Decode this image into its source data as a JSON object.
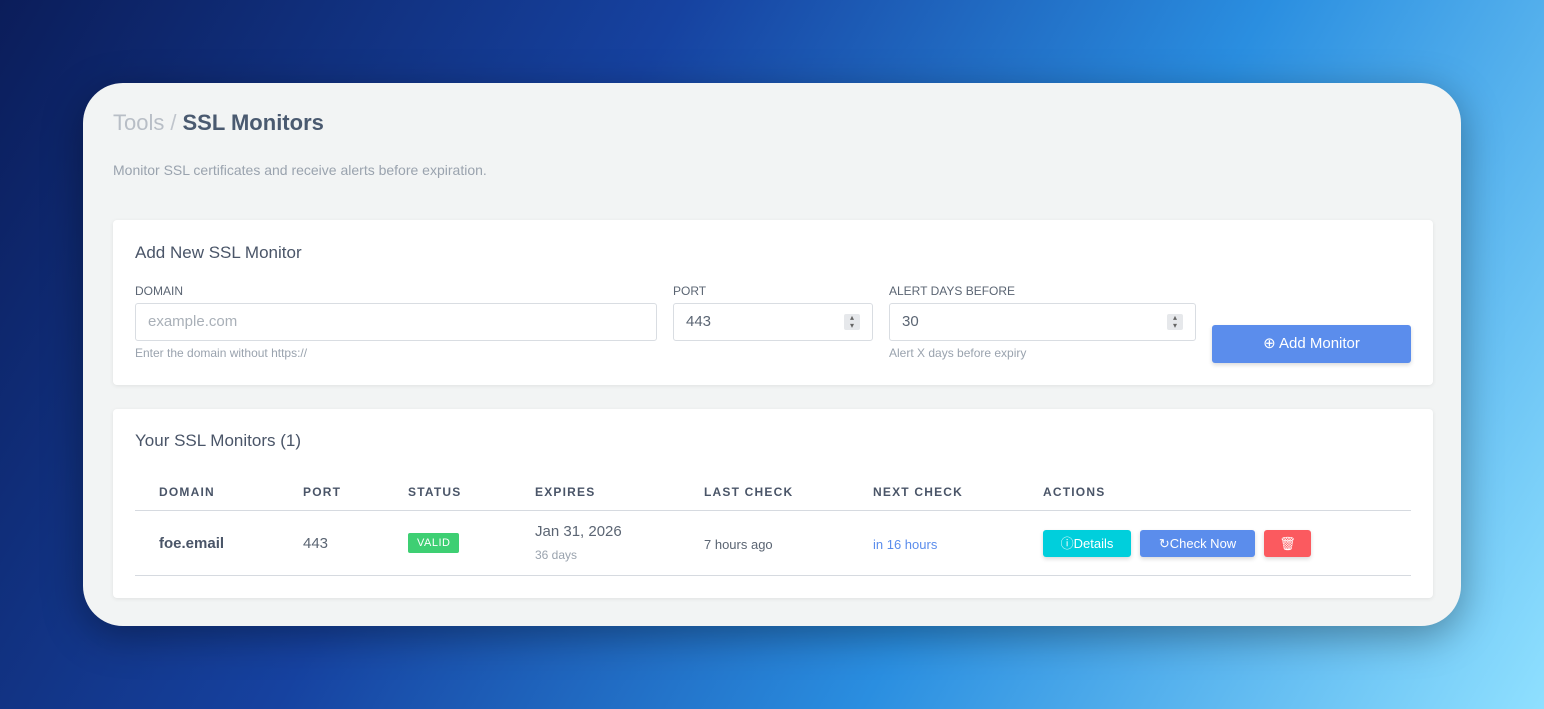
{
  "breadcrumb": {
    "parent": "Tools",
    "separator": "/",
    "current": "SSL Monitors"
  },
  "subtitle": "Monitor SSL certificates and receive alerts before expiration.",
  "form": {
    "title": "Add New SSL Monitor",
    "domain": {
      "label": "DOMAIN",
      "placeholder": "example.com",
      "help": "Enter the domain without https://"
    },
    "port": {
      "label": "PORT",
      "value": "443"
    },
    "alert_days": {
      "label": "ALERT DAYS BEFORE",
      "value": "30",
      "help": "Alert X days before expiry"
    },
    "submit": "Add Monitor"
  },
  "monitors": {
    "title": "Your SSL Monitors (1)",
    "columns": [
      "DOMAIN",
      "PORT",
      "STATUS",
      "EXPIRES",
      "LAST CHECK",
      "NEXT CHECK",
      "ACTIONS"
    ],
    "rows": [
      {
        "domain": "foe.email",
        "port": "443",
        "status": "VALID",
        "expires": "Jan 31, 2026",
        "expires_in": "36 days",
        "last_check": "7 hours ago",
        "next_check": "in 16 hours",
        "details": "Details",
        "check_now": "Check Now"
      }
    ]
  },
  "colors": {
    "valid": "#3ecf73",
    "details": "#00cfdc",
    "check_now": "#5b8dec",
    "delete": "#fb5a5f",
    "add": "#5b8dec"
  }
}
